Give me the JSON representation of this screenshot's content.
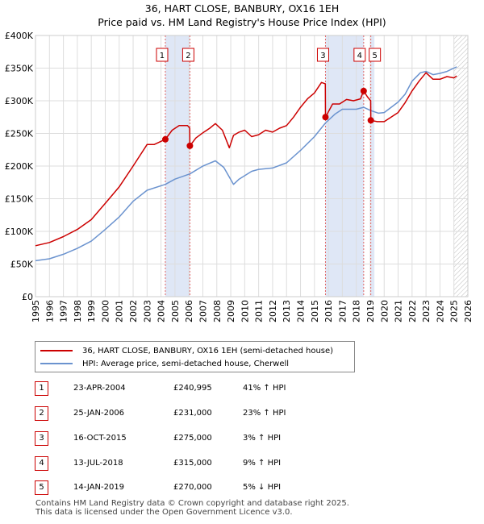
{
  "title": "36, HART CLOSE, BANBURY, OX16 1EH",
  "subtitle": "Price paid vs. HM Land Registry's House Price Index (HPI)",
  "colors": {
    "property": "#cc0000",
    "hpi": "#6b93cf",
    "shade": "#dfe7f6",
    "grid": "#dddddd"
  },
  "legend": {
    "property_label": "36, HART CLOSE, BANBURY, OX16 1EH (semi-detached house)",
    "hpi_label": "HPI: Average price, semi-detached house, Cherwell"
  },
  "transactions": [
    {
      "num": "1",
      "date": "23-APR-2004",
      "price": "£240,995",
      "hpi": "41% ↑ HPI"
    },
    {
      "num": "2",
      "date": "25-JAN-2006",
      "price": "£231,000",
      "hpi": "23% ↑ HPI"
    },
    {
      "num": "3",
      "date": "16-OCT-2015",
      "price": "£275,000",
      "hpi": "3% ↑ HPI"
    },
    {
      "num": "4",
      "date": "13-JUL-2018",
      "price": "£315,000",
      "hpi": "9% ↑ HPI"
    },
    {
      "num": "5",
      "date": "14-JAN-2019",
      "price": "£270,000",
      "hpi": "5% ↓ HPI"
    }
  ],
  "footer": {
    "line1": "Contains HM Land Registry data © Crown copyright and database right 2025.",
    "line2": "This data is licensed under the Open Government Licence v3.0."
  },
  "chart_data": {
    "type": "line",
    "xlim": [
      1995,
      2026
    ],
    "ylim": [
      0,
      400000
    ],
    "y_ticks": [
      0,
      50000,
      100000,
      150000,
      200000,
      250000,
      300000,
      350000,
      400000
    ],
    "y_tick_labels": [
      "£0",
      "£50K",
      "£100K",
      "£150K",
      "£200K",
      "£250K",
      "£300K",
      "£350K",
      "£400K"
    ],
    "x_ticks": [
      "1995",
      "1996",
      "1997",
      "1998",
      "1999",
      "2000",
      "2001",
      "2002",
      "2003",
      "2004",
      "2005",
      "2006",
      "2007",
      "2008",
      "2009",
      "2010",
      "2011",
      "2012",
      "2013",
      "2014",
      "2015",
      "2016",
      "2017",
      "2018",
      "2019",
      "2020",
      "2021",
      "2022",
      "2023",
      "2024",
      "2025",
      "2026"
    ],
    "grid": true,
    "shaded_ranges": [
      [
        2004.31,
        2006.07
      ],
      [
        2015.79,
        2018.53
      ],
      [
        2019.04,
        2019.3
      ]
    ],
    "hatched_from": 2025.0,
    "sales": [
      {
        "num": "1",
        "x": 2004.31,
        "y": 240995
      },
      {
        "num": "2",
        "x": 2006.07,
        "y": 231000
      },
      {
        "num": "3",
        "x": 2015.79,
        "y": 275000
      },
      {
        "num": "4",
        "x": 2018.53,
        "y": 315000
      },
      {
        "num": "5",
        "x": 2019.04,
        "y": 270000
      }
    ],
    "series": [
      {
        "name": "36, HART CLOSE, BANBURY, OX16 1EH (semi-detached house)",
        "x": [
          1995.0,
          1996.0,
          1997.0,
          1998.0,
          1999.0,
          2000.0,
          2001.0,
          2002.0,
          2003.0,
          2003.5,
          2004.31,
          2004.8,
          2005.3,
          2005.9,
          2006.06,
          2006.07,
          2006.5,
          2007.0,
          2007.5,
          2007.9,
          2008.4,
          2008.9,
          2009.2,
          2009.6,
          2010.0,
          2010.5,
          2011.0,
          2011.5,
          2012.0,
          2012.5,
          2013.0,
          2013.5,
          2014.0,
          2014.5,
          2015.0,
          2015.5,
          2015.78,
          2015.79,
          2016.3,
          2016.8,
          2017.3,
          2017.8,
          2018.3,
          2018.52,
          2018.53,
          2018.8,
          2019.03,
          2019.04,
          2019.5,
          2020.0,
          2020.5,
          2021.0,
          2021.5,
          2022.0,
          2022.5,
          2023.0,
          2023.5,
          2024.0,
          2024.5,
          2025.0,
          2025.2
        ],
        "y": [
          78000,
          83000,
          92000,
          103000,
          118000,
          143000,
          168000,
          200000,
          233000,
          233000,
          240995,
          255000,
          262000,
          262000,
          258000,
          231000,
          243000,
          251000,
          258000,
          265000,
          255000,
          228000,
          247000,
          252000,
          255000,
          245000,
          248000,
          255000,
          252000,
          258000,
          262000,
          275000,
          290000,
          303000,
          312000,
          328000,
          326000,
          275000,
          295000,
          295000,
          302000,
          300000,
          303000,
          315000,
          315000,
          306000,
          300000,
          270000,
          268000,
          268000,
          275000,
          282000,
          297000,
          315000,
          330000,
          343000,
          333000,
          333000,
          337000,
          335000,
          338000
        ]
      },
      {
        "name": "HPI: Average price, semi-detached house, Cherwell",
        "x": [
          1995.0,
          1996.0,
          1997.0,
          1998.0,
          1999.0,
          2000.0,
          2001.0,
          2002.0,
          2003.0,
          2004.31,
          2005.0,
          2006.07,
          2007.0,
          2007.9,
          2008.5,
          2009.2,
          2009.6,
          2010.5,
          2011.0,
          2012.0,
          2013.0,
          2014.0,
          2015.0,
          2015.79,
          2016.5,
          2017.0,
          2018.0,
          2018.53,
          2019.04,
          2019.6,
          2020.0,
          2020.5,
          2021.0,
          2021.5,
          2022.0,
          2022.6,
          2023.0,
          2023.5,
          2024.0,
          2024.5,
          2025.0,
          2025.2
        ],
        "y": [
          55000,
          58000,
          65000,
          74000,
          85000,
          103000,
          122000,
          146000,
          163000,
          172000,
          180000,
          188000,
          200000,
          208000,
          198000,
          172000,
          180000,
          192000,
          195000,
          197000,
          205000,
          224000,
          245000,
          266000,
          280000,
          287000,
          287000,
          290000,
          285000,
          281000,
          282000,
          290000,
          298000,
          310000,
          330000,
          343000,
          345000,
          340000,
          342000,
          345000,
          350000,
          352000
        ]
      }
    ]
  }
}
